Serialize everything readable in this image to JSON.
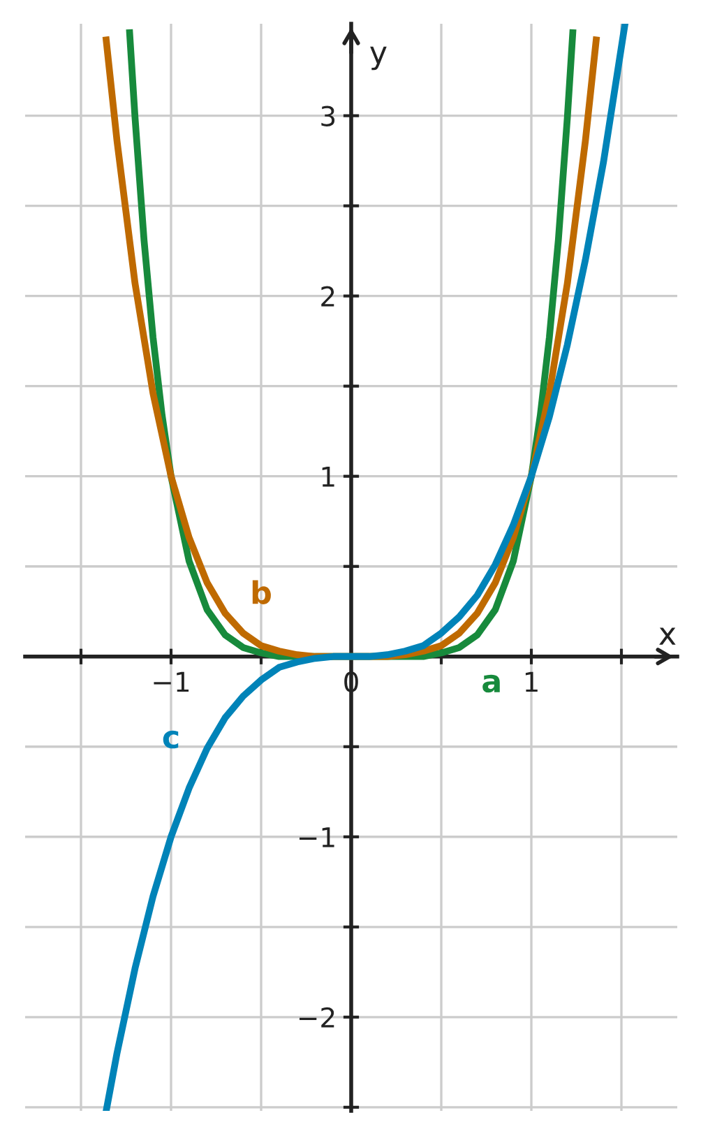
{
  "chart_data": {
    "type": "line",
    "xlabel": "x",
    "ylabel": "y",
    "xlim": [
      -1.81,
      1.81
    ],
    "ylim": [
      -2.52,
      3.51
    ],
    "xticks": [
      {
        "value": -1.5,
        "label": null
      },
      -1,
      {
        "value": -0.5,
        "label": null
      },
      0,
      {
        "value": 0.5,
        "label": null
      },
      1,
      {
        "value": 1.5,
        "label": null
      }
    ],
    "yticks": [
      {
        "value": -2.5,
        "label": null
      },
      -2,
      {
        "value": -1.5,
        "label": null
      },
      -1,
      {
        "value": -0.5,
        "label": null
      },
      {
        "value": 0.5,
        "label": null
      },
      1,
      {
        "value": 1.5,
        "label": null
      },
      2,
      {
        "value": 2.5,
        "label": null
      },
      3
    ],
    "grid": true,
    "legend": false,
    "marker": "none",
    "line_style": "solid",
    "series": [
      {
        "name": "a",
        "color": "#178a3c",
        "x": [
          -1.23,
          -1.2,
          -1.15,
          -1.1,
          -1.05,
          -1,
          -0.9,
          -0.8,
          -0.7,
          -0.6,
          -0.5,
          -0.4,
          -0.3,
          -0.2,
          0,
          0.2,
          0.3,
          0.4,
          0.5,
          0.6,
          0.7,
          0.8,
          0.9,
          1,
          1.05,
          1.1,
          1.15,
          1.2,
          1.23
        ],
        "values": [
          3.46,
          2.99,
          2.31,
          1.77,
          1.34,
          1,
          0.53,
          0.26,
          0.12,
          0.05,
          0.02,
          0.0,
          0.0,
          0.0,
          0,
          0.0,
          0.0,
          0.0,
          0.02,
          0.05,
          0.12,
          0.26,
          0.53,
          1,
          1.34,
          1.77,
          2.31,
          2.99,
          3.46
        ]
      },
      {
        "name": "b",
        "color": "#bf6a00",
        "x": [
          -1.36,
          -1.3,
          -1.2,
          -1.1,
          -1,
          -0.9,
          -0.8,
          -0.7,
          -0.6,
          -0.5,
          -0.4,
          -0.3,
          -0.2,
          0,
          0.2,
          0.3,
          0.4,
          0.5,
          0.6,
          0.7,
          0.8,
          0.9,
          1,
          1.1,
          1.2,
          1.3,
          1.36
        ],
        "values": [
          3.42,
          2.86,
          2.07,
          1.46,
          1,
          0.66,
          0.41,
          0.24,
          0.13,
          0.06,
          0.03,
          0.01,
          0.0,
          0,
          0.0,
          0.01,
          0.03,
          0.06,
          0.13,
          0.24,
          0.41,
          0.66,
          1,
          1.46,
          2.07,
          2.86,
          3.42
        ]
      },
      {
        "name": "c",
        "color": "#0083b8",
        "x": [
          -1.36,
          -1.3,
          -1.2,
          -1.1,
          -1,
          -0.9,
          -0.8,
          -0.7,
          -0.6,
          -0.5,
          -0.4,
          -0.3,
          -0.2,
          -0.1,
          0,
          0.1,
          0.2,
          0.3,
          0.4,
          0.5,
          0.6,
          0.7,
          0.8,
          0.9,
          1,
          1.1,
          1.2,
          1.3,
          1.4,
          1.52
        ],
        "values": [
          -2.52,
          -2.2,
          -1.73,
          -1.33,
          -1,
          -0.73,
          -0.51,
          -0.34,
          -0.22,
          -0.13,
          -0.06,
          -0.03,
          -0.01,
          0.0,
          0,
          0.0,
          0.01,
          0.03,
          0.06,
          0.13,
          0.22,
          0.34,
          0.51,
          0.73,
          1,
          1.33,
          1.73,
          2.2,
          2.74,
          3.51
        ]
      }
    ]
  }
}
